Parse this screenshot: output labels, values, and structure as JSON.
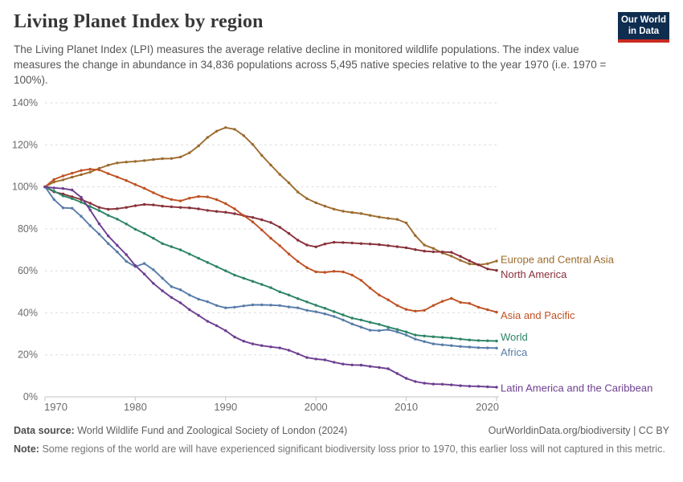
{
  "header": {
    "title": "Living Planet Index by region",
    "subtitle": "The Living Planet Index (LPI) measures the average relative decline in monitored wildlife populations. The index value measures the change in abundance in 34,836 populations across 5,495 native species relative to the year 1970 (i.e. 1970 = 100%).",
    "logo": {
      "line1": "Our World",
      "line2": "in Data",
      "bg_color": "#0E2D4F",
      "accent_color": "#C92A20"
    }
  },
  "chart_data": {
    "type": "line",
    "title": "Living Planet Index by region",
    "xlabel": "",
    "ylabel": "",
    "xlim": [
      1970,
      2020
    ],
    "ylim": [
      0,
      140
    ],
    "x_ticks": [
      1970,
      1980,
      1990,
      2000,
      2010,
      2020
    ],
    "y_ticks": [
      0,
      20,
      40,
      60,
      80,
      100,
      120,
      140
    ],
    "y_tick_suffix": "%",
    "grid": "horizontal-dashed",
    "legend_position": "end-of-line-labels",
    "grid_color": "#dddddd",
    "axis_color": "#c3c3c3",
    "tick_label_color": "#6b6b6b",
    "x": [
      1970,
      1971,
      1972,
      1973,
      1974,
      1975,
      1976,
      1977,
      1978,
      1979,
      1980,
      1981,
      1982,
      1983,
      1984,
      1985,
      1986,
      1987,
      1988,
      1989,
      1990,
      1991,
      1992,
      1993,
      1994,
      1995,
      1996,
      1997,
      1998,
      1999,
      2000,
      2001,
      2002,
      2003,
      2004,
      2005,
      2006,
      2007,
      2008,
      2009,
      2010,
      2011,
      2012,
      2013,
      2014,
      2015,
      2016,
      2017,
      2018,
      2019,
      2020
    ],
    "series": [
      {
        "name": "Europe and Central Asia",
        "color": "#9C6B2D",
        "label_dy": -2,
        "values": [
          100,
          102.3,
          103.3,
          104.6,
          105.8,
          107,
          108.8,
          110.3,
          111.4,
          111.8,
          112.1,
          112.5,
          113,
          113.4,
          113.5,
          114.2,
          116.2,
          119.5,
          123.5,
          126.5,
          128.2,
          127.4,
          124.4,
          120.2,
          115,
          110.4,
          105.9,
          101.9,
          97.5,
          94.4,
          92.4,
          90.8,
          89.4,
          88.4,
          87.8,
          87.3,
          86.4,
          85.6,
          85,
          84.5,
          82.8,
          76.8,
          72.3,
          70.7,
          68.5,
          67,
          65,
          63.3,
          62.9,
          63.4,
          64.7
        ]
      },
      {
        "name": "North America",
        "color": "#883039",
        "label_dy": 5,
        "values": [
          100,
          97.6,
          96.6,
          95.3,
          94,
          92.2,
          90.2,
          89.3,
          89.6,
          90.2,
          91,
          91.6,
          91.4,
          90.8,
          90.5,
          90.2,
          90,
          89.5,
          88.8,
          88.3,
          87.9,
          87.2,
          86.3,
          85.4,
          84.3,
          83,
          80.8,
          77.8,
          74.6,
          72.3,
          71.4,
          72.8,
          73.6,
          73.5,
          73.3,
          73,
          72.8,
          72.5,
          72,
          71.5,
          71,
          70.1,
          69.4,
          69.1,
          69,
          68.8,
          66.9,
          64.8,
          62.9,
          60.9,
          60.2
        ]
      },
      {
        "name": "Asia and Pacific",
        "color": "#BF5123",
        "label_dy": 4,
        "values": [
          100,
          103.5,
          105.2,
          106.5,
          107.8,
          108.4,
          108.1,
          106.3,
          104.7,
          103,
          101.1,
          99.3,
          97.2,
          95.3,
          94,
          93.3,
          94.6,
          95.4,
          95.2,
          93.9,
          92,
          89.5,
          86.3,
          83.3,
          79.5,
          75.5,
          72,
          68,
          64.5,
          61.5,
          59.5,
          59.3,
          59.8,
          59.5,
          58,
          55.5,
          51.8,
          48.5,
          46.2,
          43.5,
          41.6,
          40.8,
          41.2,
          43.5,
          45.5,
          46.9,
          45,
          44.5,
          42.7,
          41.5,
          40.3
        ]
      },
      {
        "name": "World",
        "color": "#2C8465",
        "label_dy": -5,
        "values": [
          100,
          98,
          95.7,
          94.4,
          92.7,
          90.6,
          88.7,
          86.4,
          84.6,
          82.3,
          79.8,
          77.8,
          75.5,
          73,
          71.5,
          70,
          68,
          66,
          64,
          62,
          60,
          58,
          56.5,
          55,
          53.5,
          52,
          50,
          48.5,
          46.8,
          45.2,
          43.6,
          42.2,
          40.6,
          39,
          37.5,
          36.6,
          35.5,
          34.5,
          33.2,
          32.1,
          30.9,
          29.4,
          29,
          28.6,
          28.3,
          28,
          27.5,
          27.1,
          26.8,
          26.7,
          26.6
        ]
      },
      {
        "name": "Africa",
        "color": "#577CA9",
        "label_dy": 5,
        "values": [
          100,
          94,
          90,
          89.8,
          86,
          81.5,
          77.5,
          73,
          69,
          64.5,
          62,
          63.5,
          60.5,
          56.5,
          52.5,
          51,
          48.5,
          46.5,
          45.3,
          43.5,
          42.4,
          42.7,
          43.3,
          43.8,
          43.8,
          43.7,
          43.5,
          42.8,
          42.4,
          41.2,
          40.5,
          39.5,
          38.3,
          36.6,
          34.7,
          33.2,
          31.7,
          31.5,
          32,
          30.9,
          29.4,
          27.5,
          26.3,
          25.2,
          24.8,
          24.4,
          24,
          23.7,
          23.4,
          23.3,
          23.2
        ]
      },
      {
        "name": "Latin America and the Caribbean",
        "color": "#6D3E91",
        "label_dy": 1,
        "values": [
          100,
          99.5,
          99.2,
          98.5,
          95,
          89,
          82.4,
          76.6,
          72.1,
          67.7,
          62.5,
          58.5,
          54,
          50.5,
          47.3,
          44.8,
          41.5,
          38.8,
          36,
          33.9,
          31.5,
          28.5,
          26.5,
          25.2,
          24.4,
          23.8,
          23.3,
          22.2,
          20.5,
          18.7,
          18,
          17.6,
          16.5,
          15.6,
          15.2,
          15.1,
          14.5,
          14,
          13.4,
          11.1,
          8.8,
          7.3,
          6.5,
          6.1,
          6,
          5.7,
          5.3,
          5.1,
          5,
          4.8,
          4.6
        ]
      }
    ]
  },
  "footer": {
    "data_source_label": "Data source:",
    "data_source_text": "World Wildlife Fund and Zoological Society of London (2024)",
    "attribution": "OurWorldinData.org/biodiversity | CC BY",
    "note_label": "Note:",
    "note_text": "Some regions of the world are will have experienced significant biodiversity loss prior to 1970, this earlier loss will not captured in this metric."
  }
}
